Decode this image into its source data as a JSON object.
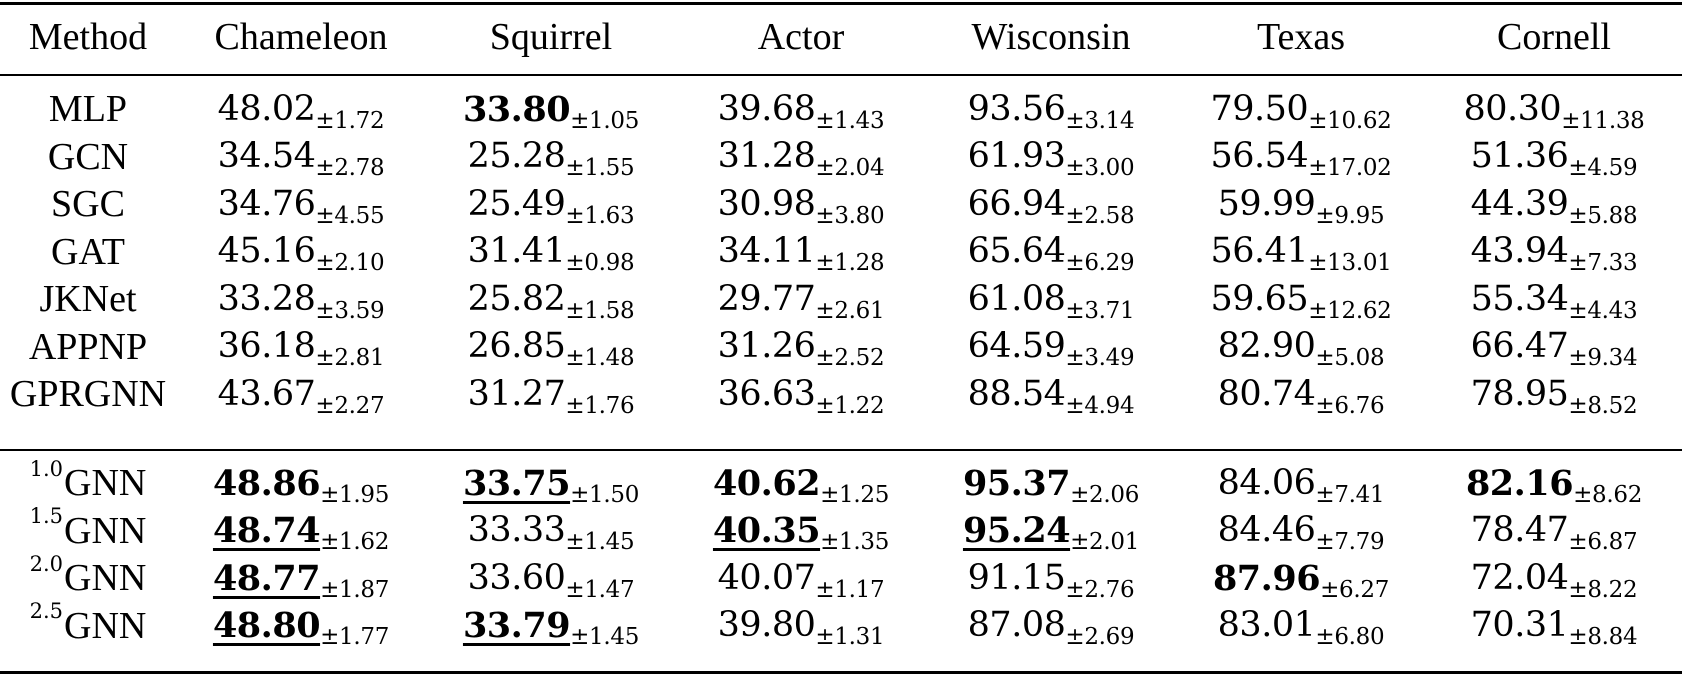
{
  "table": {
    "headers": [
      "Method",
      "Chameleon",
      "Squirrel",
      "Actor",
      "Wisconsin",
      "Texas",
      "Cornell"
    ],
    "groups": [
      {
        "rows": [
          {
            "method": "MLP",
            "sup": "",
            "cells": [
              {
                "mean": "48.02",
                "sd": "±1.72",
                "bold": false,
                "underline": false
              },
              {
                "mean": "33.80",
                "sd": "±1.05",
                "bold": true,
                "underline": false
              },
              {
                "mean": "39.68",
                "sd": "±1.43",
                "bold": false,
                "underline": false
              },
              {
                "mean": "93.56",
                "sd": "±3.14",
                "bold": false,
                "underline": false
              },
              {
                "mean": "79.50",
                "sd": "±10.62",
                "bold": false,
                "underline": false
              },
              {
                "mean": "80.30",
                "sd": "±11.38",
                "bold": false,
                "underline": false
              }
            ]
          },
          {
            "method": "GCN",
            "sup": "",
            "cells": [
              {
                "mean": "34.54",
                "sd": "±2.78",
                "bold": false,
                "underline": false
              },
              {
                "mean": "25.28",
                "sd": "±1.55",
                "bold": false,
                "underline": false
              },
              {
                "mean": "31.28",
                "sd": "±2.04",
                "bold": false,
                "underline": false
              },
              {
                "mean": "61.93",
                "sd": "±3.00",
                "bold": false,
                "underline": false
              },
              {
                "mean": "56.54",
                "sd": "±17.02",
                "bold": false,
                "underline": false
              },
              {
                "mean": "51.36",
                "sd": "±4.59",
                "bold": false,
                "underline": false
              }
            ]
          },
          {
            "method": "SGC",
            "sup": "",
            "cells": [
              {
                "mean": "34.76",
                "sd": "±4.55",
                "bold": false,
                "underline": false
              },
              {
                "mean": "25.49",
                "sd": "±1.63",
                "bold": false,
                "underline": false
              },
              {
                "mean": "30.98",
                "sd": "±3.80",
                "bold": false,
                "underline": false
              },
              {
                "mean": "66.94",
                "sd": "±2.58",
                "bold": false,
                "underline": false
              },
              {
                "mean": "59.99",
                "sd": "±9.95",
                "bold": false,
                "underline": false
              },
              {
                "mean": "44.39",
                "sd": "±5.88",
                "bold": false,
                "underline": false
              }
            ]
          },
          {
            "method": "GAT",
            "sup": "",
            "cells": [
              {
                "mean": "45.16",
                "sd": "±2.10",
                "bold": false,
                "underline": false
              },
              {
                "mean": "31.41",
                "sd": "±0.98",
                "bold": false,
                "underline": false
              },
              {
                "mean": "34.11",
                "sd": "±1.28",
                "bold": false,
                "underline": false
              },
              {
                "mean": "65.64",
                "sd": "±6.29",
                "bold": false,
                "underline": false
              },
              {
                "mean": "56.41",
                "sd": "±13.01",
                "bold": false,
                "underline": false
              },
              {
                "mean": "43.94",
                "sd": "±7.33",
                "bold": false,
                "underline": false
              }
            ]
          },
          {
            "method": "JKNet",
            "sup": "",
            "cells": [
              {
                "mean": "33.28",
                "sd": "±3.59",
                "bold": false,
                "underline": false
              },
              {
                "mean": "25.82",
                "sd": "±1.58",
                "bold": false,
                "underline": false
              },
              {
                "mean": "29.77",
                "sd": "±2.61",
                "bold": false,
                "underline": false
              },
              {
                "mean": "61.08",
                "sd": "±3.71",
                "bold": false,
                "underline": false
              },
              {
                "mean": "59.65",
                "sd": "±12.62",
                "bold": false,
                "underline": false
              },
              {
                "mean": "55.34",
                "sd": "±4.43",
                "bold": false,
                "underline": false
              }
            ]
          },
          {
            "method": "APPNP",
            "sup": "",
            "cells": [
              {
                "mean": "36.18",
                "sd": "±2.81",
                "bold": false,
                "underline": false
              },
              {
                "mean": "26.85",
                "sd": "±1.48",
                "bold": false,
                "underline": false
              },
              {
                "mean": "31.26",
                "sd": "±2.52",
                "bold": false,
                "underline": false
              },
              {
                "mean": "64.59",
                "sd": "±3.49",
                "bold": false,
                "underline": false
              },
              {
                "mean": "82.90",
                "sd": "±5.08",
                "bold": false,
                "underline": false
              },
              {
                "mean": "66.47",
                "sd": "±9.34",
                "bold": false,
                "underline": false
              }
            ]
          },
          {
            "method": "GPRGNN",
            "sup": "",
            "cells": [
              {
                "mean": "43.67",
                "sd": "±2.27",
                "bold": false,
                "underline": false
              },
              {
                "mean": "31.27",
                "sd": "±1.76",
                "bold": false,
                "underline": false
              },
              {
                "mean": "36.63",
                "sd": "±1.22",
                "bold": false,
                "underline": false
              },
              {
                "mean": "88.54",
                "sd": "±4.94",
                "bold": false,
                "underline": false
              },
              {
                "mean": "80.74",
                "sd": "±6.76",
                "bold": false,
                "underline": false
              },
              {
                "mean": "78.95",
                "sd": "±8.52",
                "bold": false,
                "underline": false
              }
            ]
          }
        ]
      },
      {
        "rows": [
          {
            "method": "GNN",
            "sup": "1.0",
            "cells": [
              {
                "mean": "48.86",
                "sd": "±1.95",
                "bold": true,
                "underline": false
              },
              {
                "mean": "33.75",
                "sd": "±1.50",
                "bold": true,
                "underline": true
              },
              {
                "mean": "40.62",
                "sd": "±1.25",
                "bold": true,
                "underline": false
              },
              {
                "mean": "95.37",
                "sd": "±2.06",
                "bold": true,
                "underline": false
              },
              {
                "mean": "84.06",
                "sd": "±7.41",
                "bold": false,
                "underline": false
              },
              {
                "mean": "82.16",
                "sd": "±8.62",
                "bold": true,
                "underline": false
              }
            ]
          },
          {
            "method": "GNN",
            "sup": "1.5",
            "cells": [
              {
                "mean": "48.74",
                "sd": "±1.62",
                "bold": true,
                "underline": true
              },
              {
                "mean": "33.33",
                "sd": "±1.45",
                "bold": false,
                "underline": false
              },
              {
                "mean": "40.35",
                "sd": "±1.35",
                "bold": true,
                "underline": true
              },
              {
                "mean": "95.24",
                "sd": "±2.01",
                "bold": true,
                "underline": true
              },
              {
                "mean": "84.46",
                "sd": "±7.79",
                "bold": false,
                "underline": false
              },
              {
                "mean": "78.47",
                "sd": "±6.87",
                "bold": false,
                "underline": false
              }
            ]
          },
          {
            "method": "GNN",
            "sup": "2.0",
            "cells": [
              {
                "mean": "48.77",
                "sd": "±1.87",
                "bold": true,
                "underline": true
              },
              {
                "mean": "33.60",
                "sd": "±1.47",
                "bold": false,
                "underline": false
              },
              {
                "mean": "40.07",
                "sd": "±1.17",
                "bold": false,
                "underline": false
              },
              {
                "mean": "91.15",
                "sd": "±2.76",
                "bold": false,
                "underline": false
              },
              {
                "mean": "87.96",
                "sd": "±6.27",
                "bold": true,
                "underline": false
              },
              {
                "mean": "72.04",
                "sd": "±8.22",
                "bold": false,
                "underline": false
              }
            ]
          },
          {
            "method": "GNN",
            "sup": "2.5",
            "cells": [
              {
                "mean": "48.80",
                "sd": "±1.77",
                "bold": true,
                "underline": true
              },
              {
                "mean": "33.79",
                "sd": "±1.45",
                "bold": true,
                "underline": true
              },
              {
                "mean": "39.80",
                "sd": "±1.31",
                "bold": false,
                "underline": false
              },
              {
                "mean": "87.08",
                "sd": "±2.69",
                "bold": false,
                "underline": false
              },
              {
                "mean": "83.01",
                "sd": "±6.80",
                "bold": false,
                "underline": false
              },
              {
                "mean": "70.31",
                "sd": "±8.84",
                "bold": false,
                "underline": false
              }
            ]
          }
        ]
      }
    ]
  }
}
